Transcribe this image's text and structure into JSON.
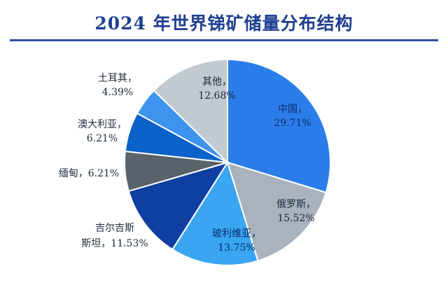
{
  "chart_data": {
    "type": "pie",
    "title": "2024 年世界锑矿储量分布结构",
    "slices": [
      {
        "label": "中国",
        "value": 29.71,
        "display": "29.71%",
        "color": "#2b7de9"
      },
      {
        "label": "俄罗斯",
        "value": 15.52,
        "display": "15.52%",
        "color": "#a9b2bd"
      },
      {
        "label": "玻利维亚",
        "value": 13.75,
        "display": "13.75%",
        "color": "#3aa6f2"
      },
      {
        "label": "吉尔吉斯斯坦",
        "value": 11.53,
        "display": "11.53%",
        "color": "#0f3fa0"
      },
      {
        "label": "缅甸",
        "value": 6.21,
        "display": "6.21%",
        "color": "#5a636b"
      },
      {
        "label": "澳大利亚",
        "value": 6.21,
        "display": "6.21%",
        "color": "#0b62c8"
      },
      {
        "label": "土耳其",
        "value": 4.39,
        "display": "4.39%",
        "color": "#3d93ee"
      },
      {
        "label": "其他",
        "value": 12.68,
        "display": "12.68%",
        "color": "#c3c9d0"
      }
    ]
  }
}
